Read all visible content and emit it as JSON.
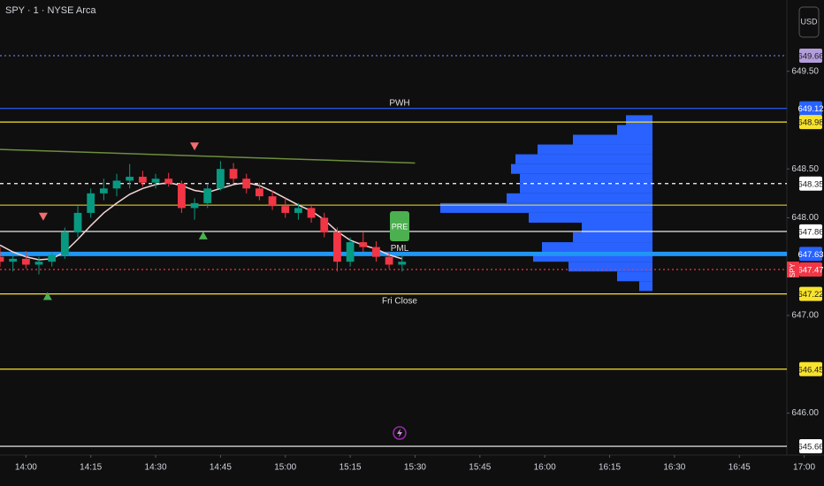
{
  "chart_data": {
    "type": "candlestick",
    "title": "SPY · 1 · NYSE Arca",
    "currency_button": "USD",
    "xlim": [
      "13:54",
      "16:56"
    ],
    "xticks": [
      "14:00",
      "14:15",
      "14:30",
      "14:45",
      "15:00",
      "15:15",
      "15:30",
      "15:45",
      "16:00",
      "16:15",
      "16:30",
      "16:45",
      "17:00"
    ],
    "ylim": [
      645.57,
      650.23
    ],
    "yticks": [
      {
        "value": 649.5,
        "label": "649.50"
      },
      {
        "value": 648.5,
        "label": "648.50"
      },
      {
        "value": 648,
        "label": "648.00"
      },
      {
        "value": 647,
        "label": "647.00"
      },
      {
        "value": 646,
        "label": "646.00"
      }
    ],
    "up_color": "#089981",
    "down_color": "#f23645",
    "candles": [
      {
        "x": "13:54",
        "open": 647.6,
        "high": 647.7,
        "low": 647.5,
        "close": 647.55
      },
      {
        "x": "13:57",
        "open": 647.55,
        "high": 647.62,
        "low": 647.45,
        "close": 647.58
      },
      {
        "x": "14:00",
        "open": 647.58,
        "high": 647.66,
        "low": 647.48,
        "close": 647.52
      },
      {
        "x": "14:03",
        "open": 647.52,
        "high": 647.6,
        "low": 647.42,
        "close": 647.55
      },
      {
        "x": "14:06",
        "open": 647.55,
        "high": 647.65,
        "low": 647.5,
        "close": 647.62
      },
      {
        "x": "14:09",
        "open": 647.62,
        "high": 647.9,
        "low": 647.58,
        "close": 647.85
      },
      {
        "x": "14:12",
        "open": 647.85,
        "high": 648.12,
        "low": 647.8,
        "close": 648.05
      },
      {
        "x": "14:15",
        "open": 648.05,
        "high": 648.3,
        "low": 648.0,
        "close": 648.25
      },
      {
        "x": "14:18",
        "open": 648.25,
        "high": 648.4,
        "low": 648.18,
        "close": 648.3
      },
      {
        "x": "14:21",
        "open": 648.3,
        "high": 648.45,
        "low": 648.22,
        "close": 648.38
      },
      {
        "x": "14:24",
        "open": 648.38,
        "high": 648.55,
        "low": 648.3,
        "close": 648.42
      },
      {
        "x": "14:27",
        "open": 648.42,
        "high": 648.48,
        "low": 648.32,
        "close": 648.36
      },
      {
        "x": "14:30",
        "open": 648.36,
        "high": 648.45,
        "low": 648.3,
        "close": 648.4
      },
      {
        "x": "14:33",
        "open": 648.4,
        "high": 648.46,
        "low": 648.32,
        "close": 648.35
      },
      {
        "x": "14:36",
        "open": 648.35,
        "high": 648.38,
        "low": 648.05,
        "close": 648.1
      },
      {
        "x": "14:39",
        "open": 648.1,
        "high": 648.2,
        "low": 647.98,
        "close": 648.15
      },
      {
        "x": "14:42",
        "open": 648.15,
        "high": 648.35,
        "low": 648.1,
        "close": 648.3
      },
      {
        "x": "14:45",
        "open": 648.3,
        "high": 648.58,
        "low": 648.28,
        "close": 648.5
      },
      {
        "x": "14:48",
        "open": 648.5,
        "high": 648.56,
        "low": 648.35,
        "close": 648.4
      },
      {
        "x": "14:51",
        "open": 648.4,
        "high": 648.45,
        "low": 648.25,
        "close": 648.3
      },
      {
        "x": "14:54",
        "open": 648.3,
        "high": 648.36,
        "low": 648.18,
        "close": 648.22
      },
      {
        "x": "14:57",
        "open": 648.22,
        "high": 648.28,
        "low": 648.08,
        "close": 648.12
      },
      {
        "x": "15:00",
        "open": 648.12,
        "high": 648.2,
        "low": 648.0,
        "close": 648.05
      },
      {
        "x": "15:03",
        "open": 648.05,
        "high": 648.15,
        "low": 647.98,
        "close": 648.1
      },
      {
        "x": "15:06",
        "open": 648.1,
        "high": 648.14,
        "low": 647.95,
        "close": 648.0
      },
      {
        "x": "15:09",
        "open": 648.0,
        "high": 648.05,
        "low": 647.8,
        "close": 647.85
      },
      {
        "x": "15:12",
        "open": 647.85,
        "high": 647.9,
        "low": 647.45,
        "close": 647.55
      },
      {
        "x": "15:15",
        "open": 647.55,
        "high": 647.8,
        "low": 647.5,
        "close": 647.75
      },
      {
        "x": "15:18",
        "open": 647.75,
        "high": 647.85,
        "low": 647.65,
        "close": 647.7
      },
      {
        "x": "15:21",
        "open": 647.7,
        "high": 647.76,
        "low": 647.55,
        "close": 647.6
      },
      {
        "x": "15:24",
        "open": 647.6,
        "high": 647.65,
        "low": 647.48,
        "close": 647.52
      },
      {
        "x": "15:27",
        "open": 647.52,
        "high": 647.62,
        "low": 647.45,
        "close": 647.55
      }
    ],
    "series": [
      {
        "color": "#f3d6d6",
        "x": [
          "13:54",
          "13:57",
          "14:00",
          "14:03",
          "14:06",
          "14:09",
          "14:12",
          "14:15",
          "14:18",
          "14:21",
          "14:24",
          "14:27",
          "14:30",
          "14:33",
          "14:36",
          "14:39",
          "14:42",
          "14:45",
          "14:48",
          "14:51",
          "14:54",
          "14:57",
          "15:00",
          "15:03",
          "15:06",
          "15:09",
          "15:12",
          "15:15",
          "15:18",
          "15:21",
          "15:24",
          "15:27"
        ],
        "values": [
          647.72,
          647.65,
          647.6,
          647.57,
          647.58,
          647.65,
          647.78,
          647.92,
          648.05,
          648.15,
          648.24,
          648.3,
          648.34,
          648.36,
          648.33,
          648.28,
          648.26,
          648.3,
          648.34,
          648.36,
          648.33,
          648.27,
          648.2,
          648.13,
          648.07,
          647.98,
          647.86,
          647.77,
          647.72,
          647.68,
          647.62,
          647.58
        ]
      },
      {
        "color": "#6b8e3e",
        "x": [
          "13:54",
          "15:30"
        ],
        "values": [
          648.7,
          648.56
        ]
      }
    ],
    "levels": [
      {
        "value": 649.66,
        "color": "#5b7bd5",
        "text_color": "#1a1a1a",
        "badge": "#b39ddb",
        "style": "dotted"
      },
      {
        "value": 649.12,
        "color": "#2962ff",
        "text_color": "#ffffff",
        "badge": "#2962ff",
        "style": "solid",
        "text": "PWH"
      },
      {
        "value": 648.98,
        "color": "#f7e22d",
        "text_color": "#1a1a1a",
        "badge": "#f7e22d",
        "style": "solid"
      },
      {
        "value": 648.35,
        "color": "#ffffff",
        "text_color": "#1a1a1a",
        "badge": "#ffffff",
        "style": "dashed"
      },
      {
        "value": 647.86,
        "color": "#ffffff",
        "text_color": "#1a1a1a",
        "badge": "#ffffff",
        "style": "solid"
      },
      {
        "value": 647.63,
        "color": "#2196f3",
        "text_color": "#ffffff",
        "badge": "#2962ff",
        "style": "thick",
        "text": "PML"
      },
      {
        "value": 647.47,
        "color": "#f23645",
        "text_color": "#ffffff",
        "badge": "#f23645",
        "style": "dotted"
      },
      {
        "value": 647.22,
        "color": "#f7e22d",
        "text_color": "#1a1a1a",
        "badge": "#f7e22d",
        "style": "solid",
        "text": "Fri Close"
      },
      {
        "value": 646.45,
        "color": "#f7e22d",
        "text_color": "#1a1a1a",
        "badge": "#f7e22d",
        "style": "solid"
      },
      {
        "value": 645.66,
        "color": "#ffffff",
        "text_color": "#1a1a1a",
        "badge": "#ffffff",
        "style": "solid"
      }
    ],
    "unlabeled_levels": [
      {
        "value": 648.13,
        "color": "#f7e22d"
      }
    ],
    "symbol_tag": "SPY",
    "tag_text": "PRE",
    "signals": [
      {
        "x": "14:04",
        "price": 647.97,
        "dir": "down",
        "color": "#f26d6d"
      },
      {
        "x": "14:39",
        "price": 648.69,
        "dir": "down",
        "color": "#f26d6d"
      },
      {
        "x": "14:05",
        "price": 647.24,
        "dir": "up",
        "color": "#4caf50"
      },
      {
        "x": "14:41",
        "price": 647.86,
        "dir": "up",
        "color": "#4caf50"
      }
    ],
    "profile_color": "#2962ff",
    "profile": {
      "prices": [
        649.0,
        648.9,
        648.8,
        648.7,
        648.6,
        648.5,
        648.4,
        648.3,
        648.2,
        648.1,
        648.0,
        647.9,
        647.8,
        647.7,
        647.6,
        647.5,
        647.4,
        647.3
      ],
      "volumes": [
        30,
        40,
        90,
        130,
        155,
        160,
        150,
        150,
        165,
        240,
        140,
        80,
        90,
        125,
        135,
        95,
        40,
        15
      ]
    }
  }
}
